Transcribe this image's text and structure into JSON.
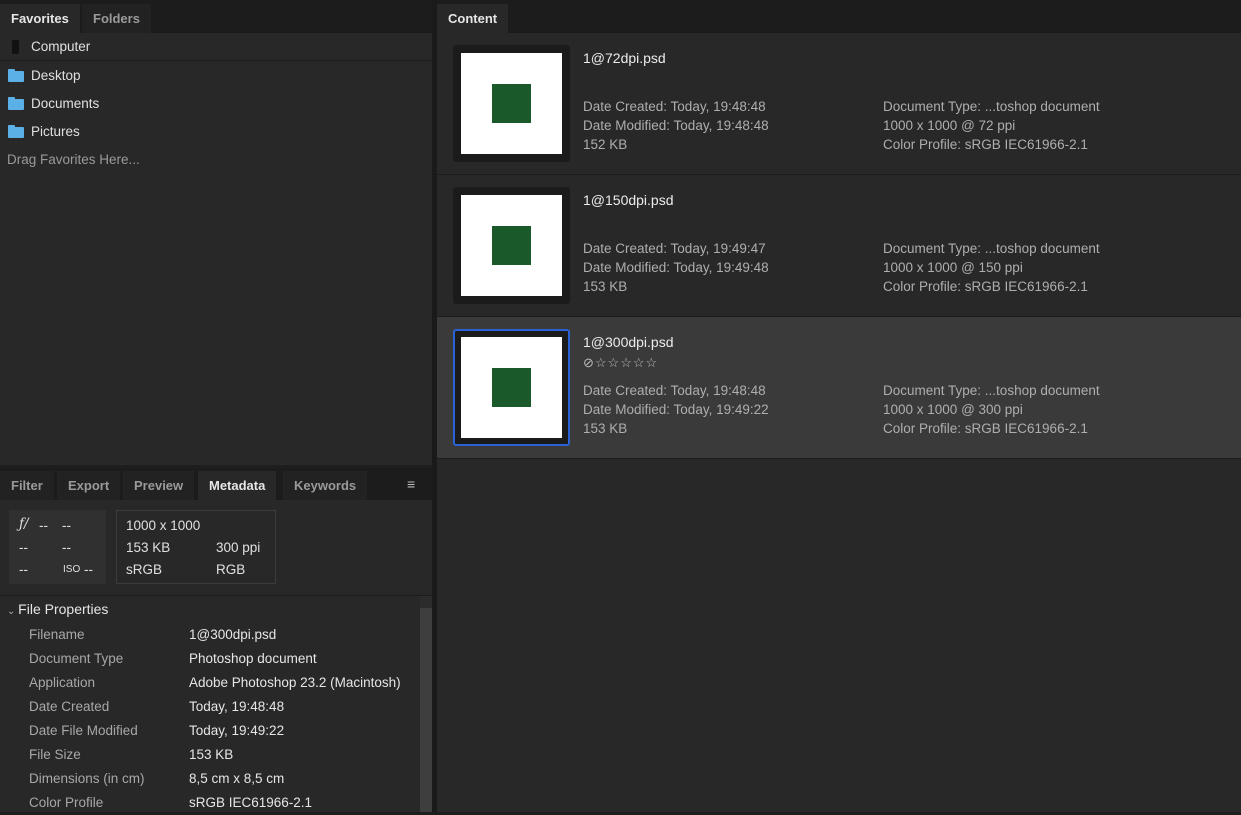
{
  "favorites_panel": {
    "tabs": [
      "Favorites",
      "Folders"
    ],
    "items": [
      {
        "label": "Computer",
        "icon": "computer-icon"
      },
      {
        "label": "Desktop",
        "icon": "folder-icon"
      },
      {
        "label": "Documents",
        "icon": "folder-icon"
      },
      {
        "label": "Pictures",
        "icon": "folder-icon"
      }
    ],
    "hint": "Drag Favorites Here..."
  },
  "content_panel": {
    "tab": "Content",
    "items": [
      {
        "name": "1@72dpi.psd",
        "rating": null,
        "created": "Date Created: Today, 19:48:48",
        "modified": "Date Modified: Today, 19:48:48",
        "size": "152 KB",
        "type": "Document Type: ...toshop document",
        "dims": "1000 x 1000 @ 72 ppi",
        "profile": "Color Profile: sRGB IEC61966-2.1"
      },
      {
        "name": "1@150dpi.psd",
        "rating": null,
        "created": "Date Created: Today, 19:49:47",
        "modified": "Date Modified: Today, 19:49:48",
        "size": "153 KB",
        "type": "Document Type: ...toshop document",
        "dims": "1000 x 1000 @ 150 ppi",
        "profile": "Color Profile: sRGB IEC61966-2.1"
      },
      {
        "name": "1@300dpi.psd",
        "rating": "⊘☆☆☆☆☆",
        "created": "Date Created: Today, 19:48:48",
        "modified": "Date Modified: Today, 19:49:22",
        "size": "153 KB",
        "type": "Document Type: ...toshop document",
        "dims": "1000 x 1000 @ 300 ppi",
        "profile": "Color Profile: sRGB IEC61966-2.1",
        "selected": true
      }
    ]
  },
  "bottom_panel": {
    "tabs": [
      "Filter",
      "Export",
      "Preview",
      "Metadata",
      "Keywords"
    ],
    "active_tab": "Metadata",
    "camera": {
      "aperture_symbol": "ƒ/",
      "aperture": "--",
      "shutter": "--",
      "a": "--",
      "b": "--",
      "c": "--",
      "iso_label": "ISO",
      "iso": "--"
    },
    "image_info": {
      "dimensions": "1000 x 1000",
      "size": "153 KB",
      "resolution": "300 ppi",
      "profile": "sRGB",
      "mode": "RGB"
    },
    "section": "File Properties",
    "properties": [
      [
        "Filename",
        "1@300dpi.psd"
      ],
      [
        "Document Type",
        "Photoshop document"
      ],
      [
        "Application",
        "Adobe Photoshop 23.2 (Macintosh)"
      ],
      [
        "Date Created",
        "Today, 19:48:48"
      ],
      [
        "Date File Modified",
        "Today, 19:49:22"
      ],
      [
        "File Size",
        "153 KB"
      ],
      [
        "Dimensions (in cm)",
        "8,5 cm x 8,5 cm"
      ],
      [
        "Color Profile",
        "sRGB IEC61966-2.1"
      ]
    ]
  },
  "colors": {
    "selection": "#2a62d6",
    "folder": "#5cb0e8",
    "thumb_square": "#1a5a2a"
  }
}
